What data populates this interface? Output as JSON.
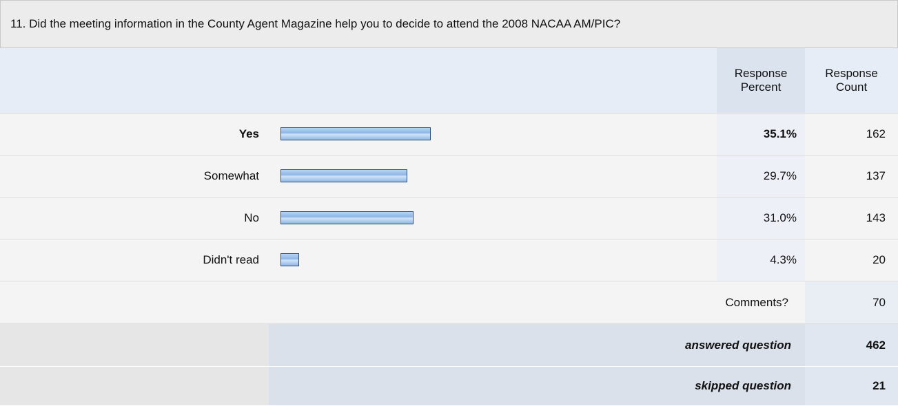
{
  "question": "11. Did the meeting information in the County Agent Magazine help you to decide to attend the 2008 NACAA AM/PIC?",
  "header": {
    "percent": "Response Percent",
    "count": "Response Count"
  },
  "rows": [
    {
      "label": "Yes",
      "percent": 35.1,
      "percent_label": "35.1%",
      "count": 162
    },
    {
      "label": "Somewhat",
      "percent": 29.7,
      "percent_label": "29.7%",
      "count": 137
    },
    {
      "label": "No",
      "percent": 31.0,
      "percent_label": "31.0%",
      "count": 143
    },
    {
      "label": "Didn't read",
      "percent": 4.3,
      "percent_label": "4.3%",
      "count": 20
    }
  ],
  "comments": {
    "label": "Comments?",
    "count": 70
  },
  "answered": {
    "label": "answered question",
    "count": 462
  },
  "skipped": {
    "label": "skipped question",
    "count": 21
  }
}
